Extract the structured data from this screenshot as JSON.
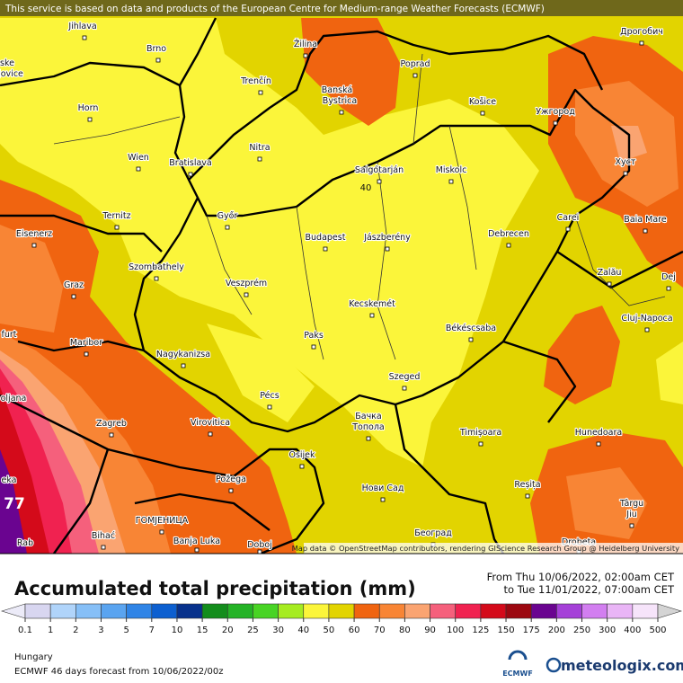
{
  "header": {
    "notice": "This service is based on data and products of the European Centre for Medium-range Weather Forecasts (ECMWF)"
  },
  "map": {
    "attribution": "Map data © OpenStreetMap contributors, rendering GIScience Research Group @ Heidelberg University",
    "cities": [
      "Jihlava",
      "Brno",
      "Žilina",
      "Poprad",
      "Дрогобич",
      "ske",
      "jovice",
      "Trenčín",
      "Banská",
      "Bystrica",
      "Horn",
      "Košice",
      "Ужгород",
      "Wien",
      "Bratislava",
      "Nitra",
      "Salgótarján",
      "Miskolc",
      "Хуст",
      "Ternitz",
      "Győr",
      "Carei",
      "Baia Mare",
      "Eisenerz",
      "Budapest",
      "Jászberény",
      "Debrecen",
      "Szombathely",
      "Zalău",
      "Graz",
      "Veszprém",
      "Dej",
      "Cluj-Napoca",
      "Kecskemét",
      "furt",
      "Paks",
      "Békéscsaba",
      "Maribor",
      "Nagykanizsa",
      "Szeged",
      "oljana",
      "Pécs",
      "Бачка",
      "Топола",
      "Zagreb",
      "Virovitica",
      "Timișoara",
      "Hunedoara",
      "Osijek",
      "eka",
      "Reșița",
      "Požega",
      "Нови Сад",
      "Târgu",
      "Jiu",
      "ГОМЈЕНИЦА",
      "Bihać",
      "Banja Luka",
      "Doboj",
      "Београд",
      "Rab",
      "Drobeta"
    ],
    "contour_labels": [
      "40",
      "77"
    ]
  },
  "title": "Accumulated total precipitation (mm)",
  "period": {
    "from": "From Thu 10/06/2022, 02:00am CET",
    "to": "to Tue 11/01/2022, 07:00am CET"
  },
  "legend": {
    "ticks": [
      0.1,
      1,
      2,
      3,
      5,
      7,
      10,
      15,
      20,
      25,
      30,
      40,
      50,
      60,
      70,
      80,
      90,
      100,
      125,
      150,
      175,
      200,
      250,
      300,
      400,
      500
    ],
    "colors": [
      "#ecebf8",
      "#d8d6f0",
      "#b0d4fa",
      "#86bff7",
      "#5aa4f0",
      "#2f84e6",
      "#0c5fd0",
      "#07318c",
      "#138d1c",
      "#24b326",
      "#48d424",
      "#a6ec20",
      "#fbf53a",
      "#e2d400",
      "#f06410",
      "#f88535",
      "#faa471",
      "#f5607c",
      "#f02250",
      "#d40a1a",
      "#9c0810",
      "#6a0490",
      "#a540d8",
      "#d27ef0",
      "#e9b5f6",
      "#f6e4fa",
      "#d4d4d4"
    ]
  },
  "footer": {
    "region": "Hungary",
    "forecast": "ECMWF 46 days forecast from  10/06/2022/00z",
    "ecmwf": "ECMWF",
    "brand": "meteologix.com"
  }
}
